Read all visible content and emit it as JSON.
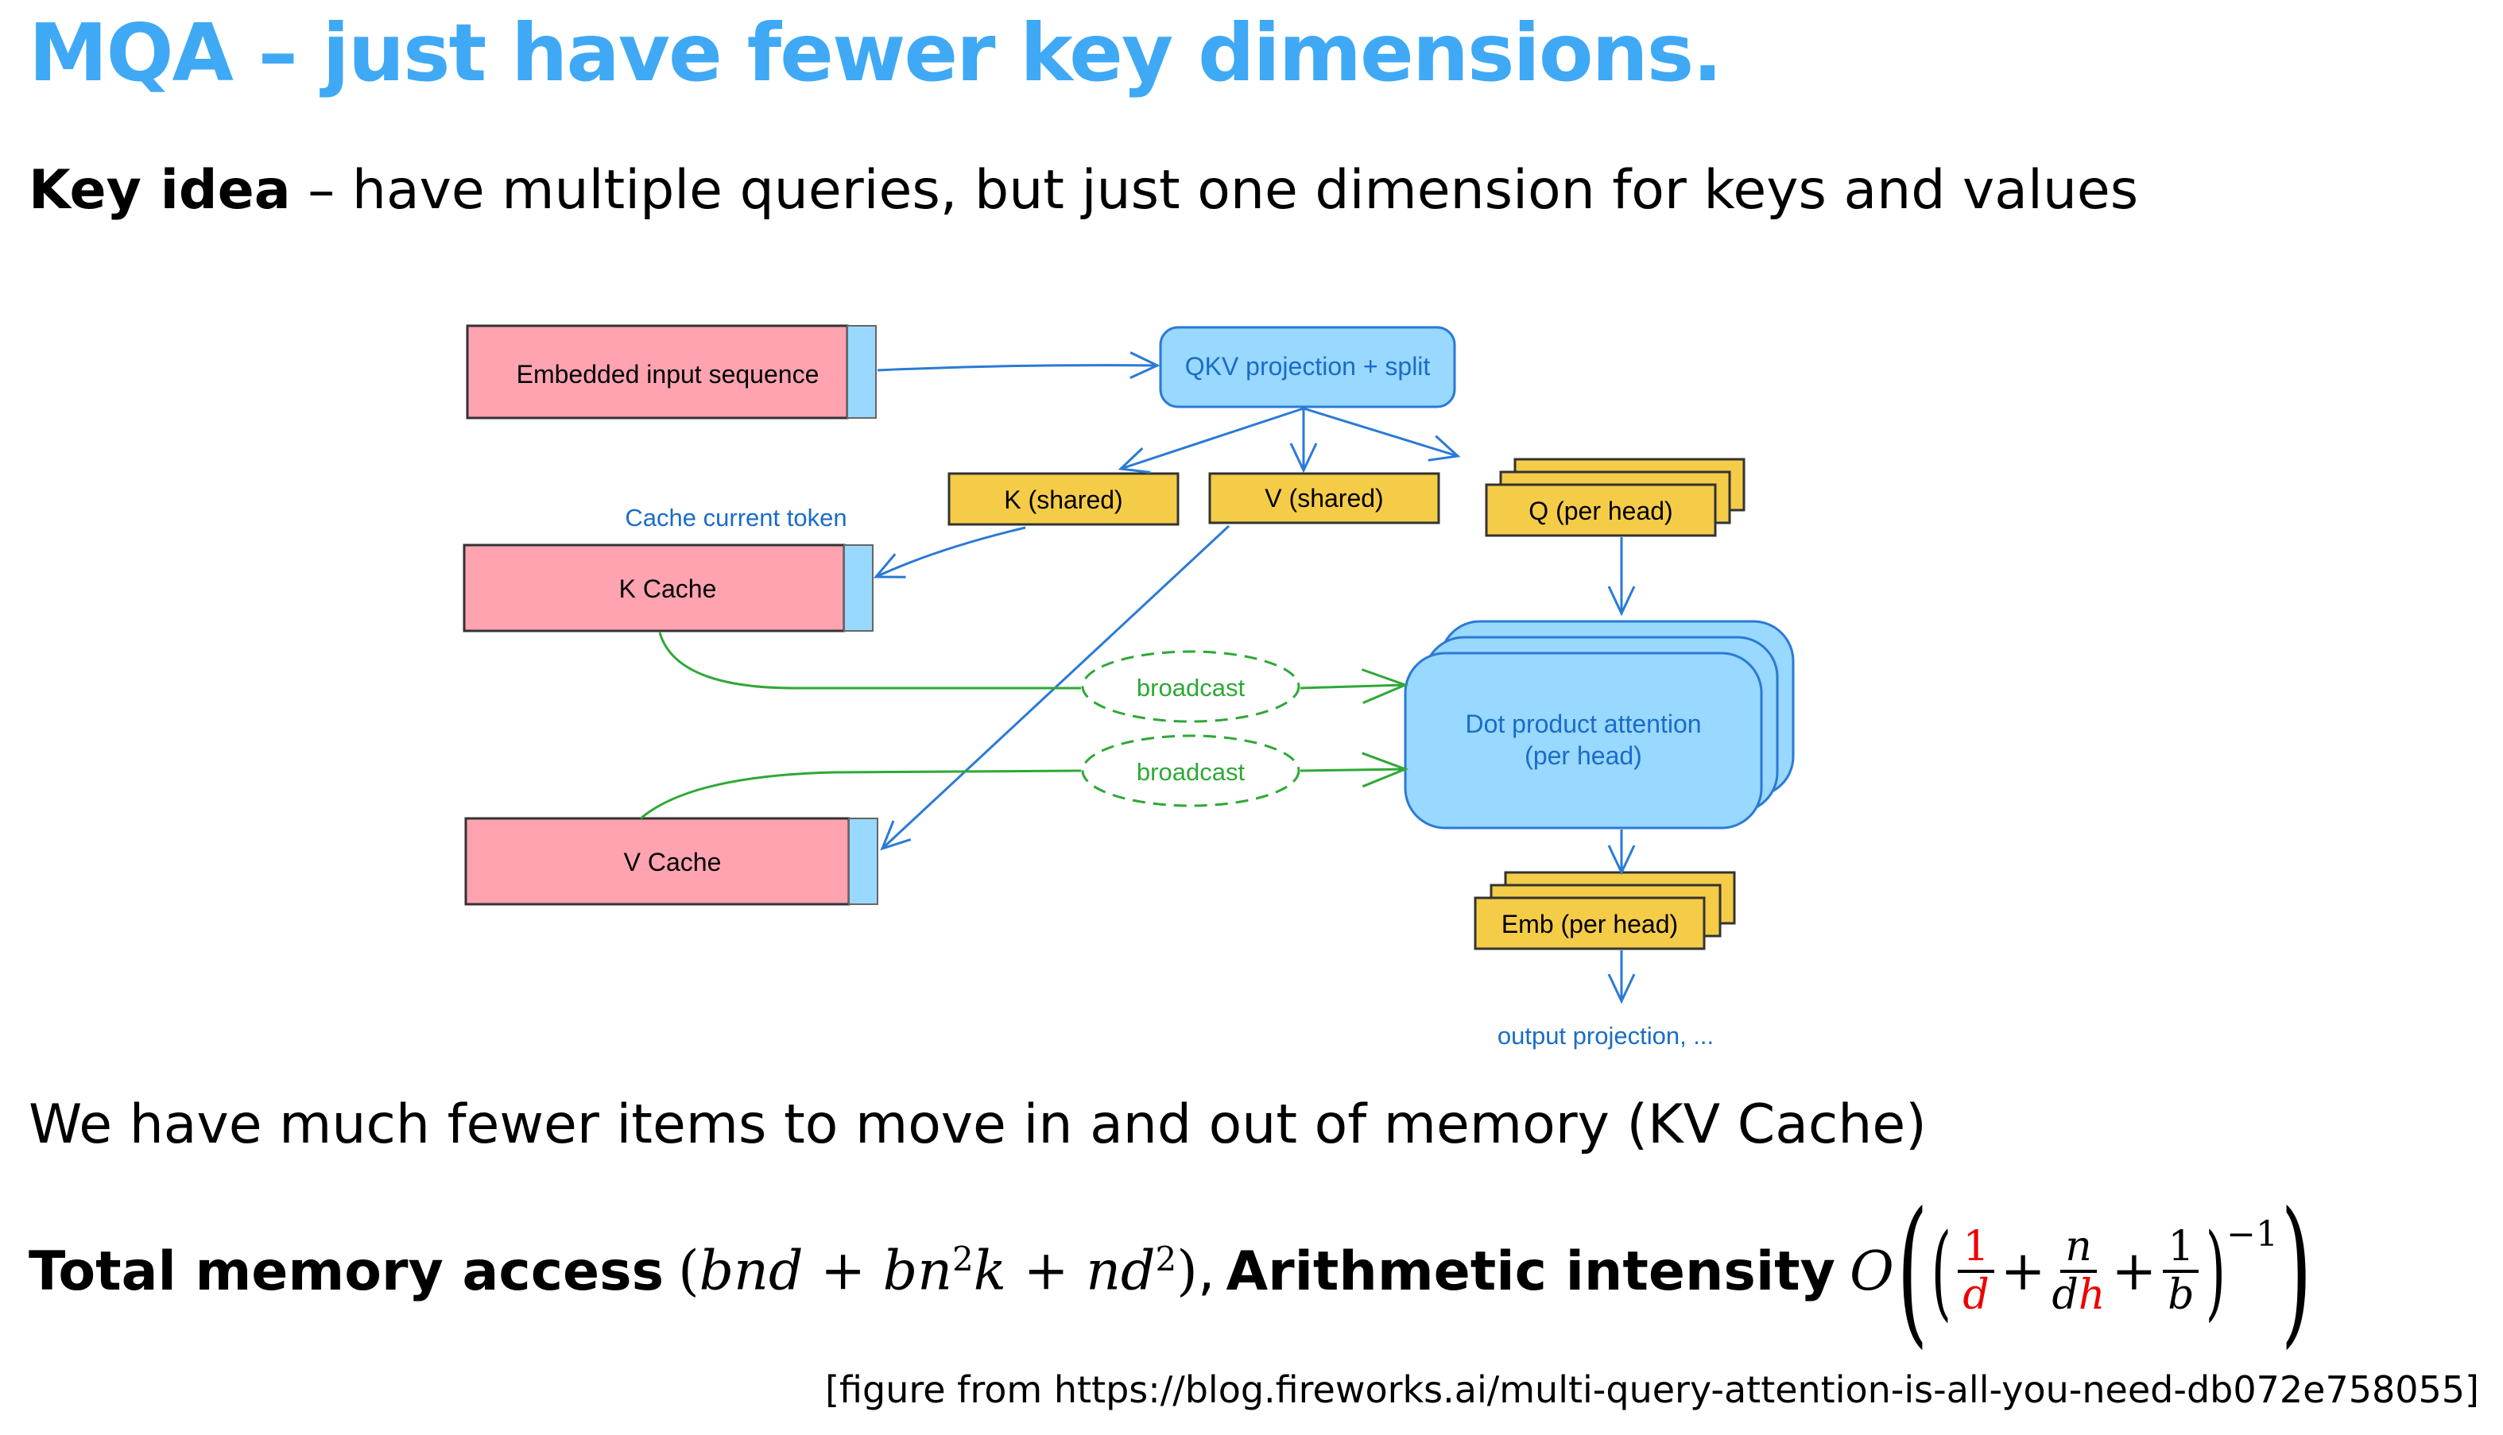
{
  "slide": {
    "title": "MQA – just have fewer key dimensions.",
    "key_idea_label": "Key idea",
    "key_idea_text": " – have multiple queries, but just one dimension for keys and values",
    "fewer_items_text": "We have much fewer items to move in and out of memory (KV Cache)",
    "total_memory_label": "Total memory access",
    "total_memory_expr": {
      "open": "(",
      "t1": "bnd",
      "plus1": " + ",
      "t2a": "bn",
      "t2sup": "2",
      "t2b": "k",
      "plus2": " + ",
      "t3": "nd",
      "t3sup": "2",
      "close": ")",
      "comma": ","
    },
    "arith_label": "Arithmetic intensity",
    "arith_expr": {
      "O": "O",
      "f1_num": "1",
      "f1_den": "d",
      "plus": "+",
      "f2_num": "n",
      "f2_den_a": "d",
      "f2_den_b": "h",
      "f3_num": "1",
      "f3_den": "b",
      "exp": "−1"
    },
    "citation": "[figure from https://blog.fireworks.ai/multi-query-attention-is-all-you-need-db072e758055]"
  },
  "diagram": {
    "embedded_input": "Embedded input sequence",
    "qkv": "QKV projection + split",
    "k_shared": "K (shared)",
    "v_shared": "V (shared)",
    "q_per_head": "Q (per head)",
    "cache_current_token": "Cache current token",
    "k_cache": "K Cache",
    "v_cache": "V Cache",
    "broadcast_1": "broadcast",
    "broadcast_2": "broadcast",
    "dot_product_1": "Dot product attention",
    "dot_product_2": "(per head)",
    "emb_per_head": "Emb (per head)",
    "output_projection": "output projection, ..."
  },
  "colors": {
    "title": "#3fa9f5",
    "pink": "#ffa3b1",
    "light_blue": "#99d8ff",
    "yellow": "#f4cc48",
    "blue_line": "#2a7ad6",
    "green": "#2ea836",
    "red_math": "#e00000"
  }
}
